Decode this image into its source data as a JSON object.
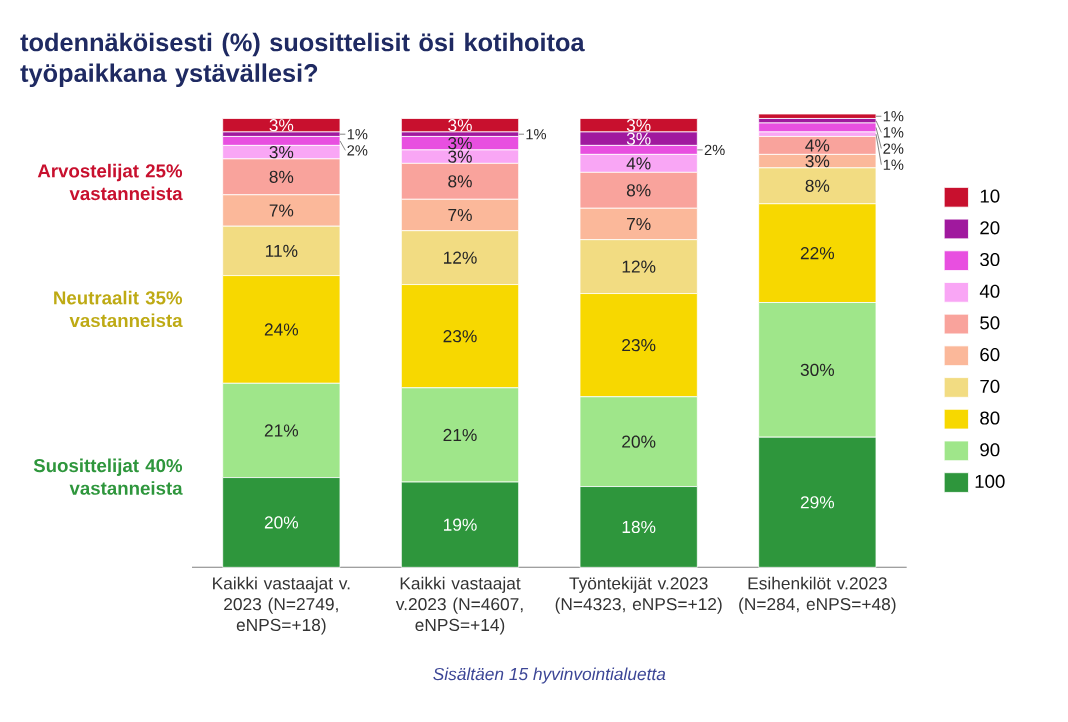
{
  "chart_data": {
    "type": "bar",
    "stacked": true,
    "title": "todennäköisesti (%) suosittelisit ösi kotihoitoa työpaikkana ystävällesi?",
    "categories": [
      "Kaikki vastaajat v. 2023 (N=2749, eNPS=+18)",
      "Kaikki vastaajat v.2023 (N=4607, eNPS=+14)",
      "Työntekijät v.2023 (N=4323, eNPS=+12)",
      "Esihenkilöt v.2023 (N=284, eNPS=+48)"
    ],
    "series": [
      {
        "name": "100",
        "color": "#2e963c",
        "values": [
          20,
          19,
          18,
          29
        ],
        "value_labels": [
          "20%",
          "19%",
          "18%",
          "29%"
        ]
      },
      {
        "name": "90",
        "color": "#9fe68a",
        "values": [
          21,
          21,
          20,
          30
        ],
        "value_labels": [
          "21%",
          "21%",
          "20%",
          "30%"
        ]
      },
      {
        "name": "80",
        "color": "#f7d800",
        "values": [
          24,
          23,
          23,
          22
        ],
        "value_labels": [
          "24%",
          "23%",
          "23%",
          "22%"
        ]
      },
      {
        "name": "70",
        "color": "#f2dc82",
        "values": [
          11,
          12,
          12,
          8
        ],
        "value_labels": [
          "11%",
          "12%",
          "12%",
          "8%"
        ]
      },
      {
        "name": "60",
        "color": "#fbb89a",
        "values": [
          7,
          7,
          7,
          3
        ],
        "value_labels": [
          "7%",
          "7%",
          "7%",
          "3%"
        ]
      },
      {
        "name": "50",
        "color": "#f9a39c",
        "values": [
          8,
          8,
          8,
          4
        ],
        "value_labels": [
          "8%",
          "8%",
          "8%",
          "4%"
        ]
      },
      {
        "name": "40",
        "color": "#f9a6f5",
        "values": [
          3,
          3,
          4,
          1
        ],
        "value_labels": [
          "3%",
          "3%",
          "4%",
          "1%"
        ]
      },
      {
        "name": "30",
        "color": "#e84fe0",
        "values": [
          2,
          3,
          2,
          2
        ],
        "value_labels": [
          "2%",
          "3%",
          "2%",
          "2%"
        ]
      },
      {
        "name": "20",
        "color": "#a0199e",
        "values": [
          1,
          1,
          3,
          1
        ],
        "value_labels": [
          "1%",
          "1%",
          "3%",
          "1%"
        ]
      },
      {
        "name": "10",
        "color": "#c8102e",
        "values": [
          3,
          3,
          3,
          1
        ],
        "value_labels": [
          "3%",
          "3%",
          "3%",
          "1%"
        ]
      }
    ],
    "legend": "right",
    "annotations": [
      "Arvostelijat 25% vastanneista",
      "Neutraalit 35% vastanneista",
      "Suosittelijat 40% vastanneista",
      "Sisältäen 15 hyvinvointialuetta"
    ]
  }
}
